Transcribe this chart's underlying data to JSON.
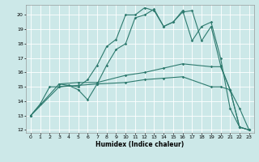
{
  "xlabel": "Humidex (Indice chaleur)",
  "bg_color": "#cce8e8",
  "line_color": "#2d7a6e",
  "grid_color": "#ffffff",
  "xlim": [
    -0.5,
    23.5
  ],
  "ylim": [
    11.8,
    20.7
  ],
  "xticks": [
    0,
    1,
    2,
    3,
    4,
    5,
    6,
    7,
    8,
    9,
    10,
    11,
    12,
    13,
    14,
    15,
    16,
    17,
    18,
    19,
    20,
    21,
    22,
    23
  ],
  "yticks": [
    12,
    13,
    14,
    15,
    16,
    17,
    18,
    19,
    20
  ],
  "lines": [
    {
      "x": [
        0,
        1,
        2,
        3,
        4,
        5,
        6,
        7,
        8,
        9,
        10,
        11,
        12,
        13,
        14,
        15,
        16,
        17,
        18,
        19,
        20,
        21,
        22,
        23
      ],
      "y": [
        13,
        13.8,
        15.0,
        15.0,
        15.1,
        14.8,
        14.1,
        15.2,
        16.5,
        17.6,
        18.0,
        19.8,
        20.0,
        20.4,
        19.2,
        19.5,
        20.2,
        20.3,
        18.2,
        19.2,
        16.5,
        14.8,
        13.5,
        12.0
      ]
    },
    {
      "x": [
        0,
        3,
        5,
        7,
        10,
        12,
        14,
        16,
        19,
        20,
        21,
        22,
        23
      ],
      "y": [
        13,
        15.2,
        15.3,
        15.3,
        15.8,
        16.0,
        16.3,
        16.6,
        16.4,
        16.4,
        14.8,
        12.2,
        12.0
      ]
    },
    {
      "x": [
        0,
        3,
        5,
        7,
        10,
        12,
        14,
        16,
        19,
        20,
        21,
        22,
        23
      ],
      "y": [
        13,
        15.0,
        15.1,
        15.2,
        15.3,
        15.5,
        15.6,
        15.7,
        15.0,
        15.0,
        14.8,
        12.2,
        12.0
      ]
    },
    {
      "x": [
        3,
        5,
        6,
        7,
        8,
        9,
        10,
        11,
        12,
        13,
        14,
        15,
        16,
        17,
        18,
        19,
        20,
        21,
        22,
        23
      ],
      "y": [
        15.2,
        15.0,
        15.5,
        16.5,
        17.8,
        18.3,
        20.0,
        20.0,
        20.5,
        20.3,
        19.2,
        19.5,
        20.3,
        18.2,
        19.2,
        19.5,
        17.0,
        13.5,
        12.2,
        12.0
      ]
    }
  ]
}
